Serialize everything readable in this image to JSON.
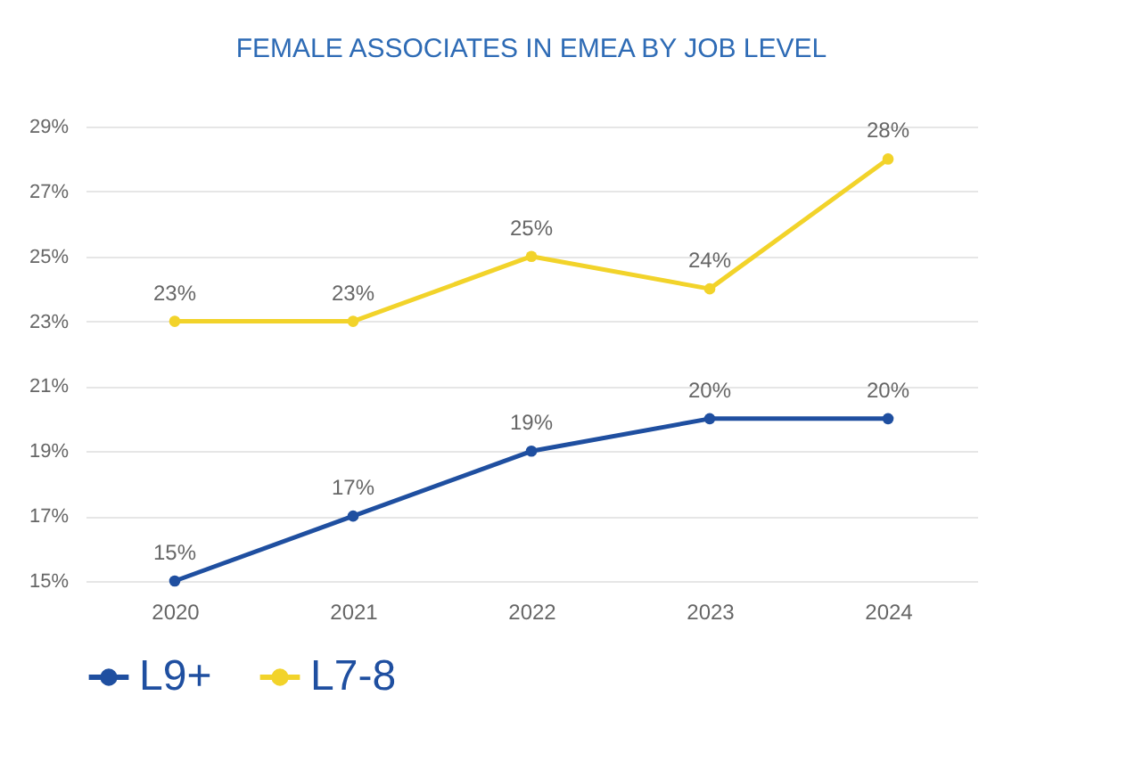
{
  "chart_data": {
    "type": "line",
    "title": "FEMALE ASSOCIATES IN EMEA BY JOB LEVEL",
    "categories": [
      "2020",
      "2021",
      "2022",
      "2023",
      "2024"
    ],
    "series": [
      {
        "name": "L9+",
        "color": "#1f4fa0",
        "values": [
          15,
          17,
          19,
          20,
          20
        ],
        "value_labels": [
          "15%",
          "17%",
          "19%",
          "20%",
          "20%"
        ]
      },
      {
        "name": "L7-8",
        "color": "#f2d32a",
        "values": [
          23,
          23,
          25,
          24,
          28
        ],
        "value_labels": [
          "23%",
          "23%",
          "25%",
          "24%",
          "28%"
        ]
      }
    ],
    "ylim": [
      15,
      29
    ],
    "yticks": [
      {
        "value": 15,
        "label": "15%"
      },
      {
        "value": 17,
        "label": "17%"
      },
      {
        "value": 19,
        "label": "19%"
      },
      {
        "value": 21,
        "label": "21%"
      },
      {
        "value": 23,
        "label": "23%"
      },
      {
        "value": 25,
        "label": "25%"
      },
      {
        "value": 27,
        "label": "27%"
      },
      {
        "value": 29,
        "label": "29%"
      }
    ],
    "grid": "y",
    "legend": "bottom",
    "marker": "circle",
    "line_style": "solid"
  }
}
